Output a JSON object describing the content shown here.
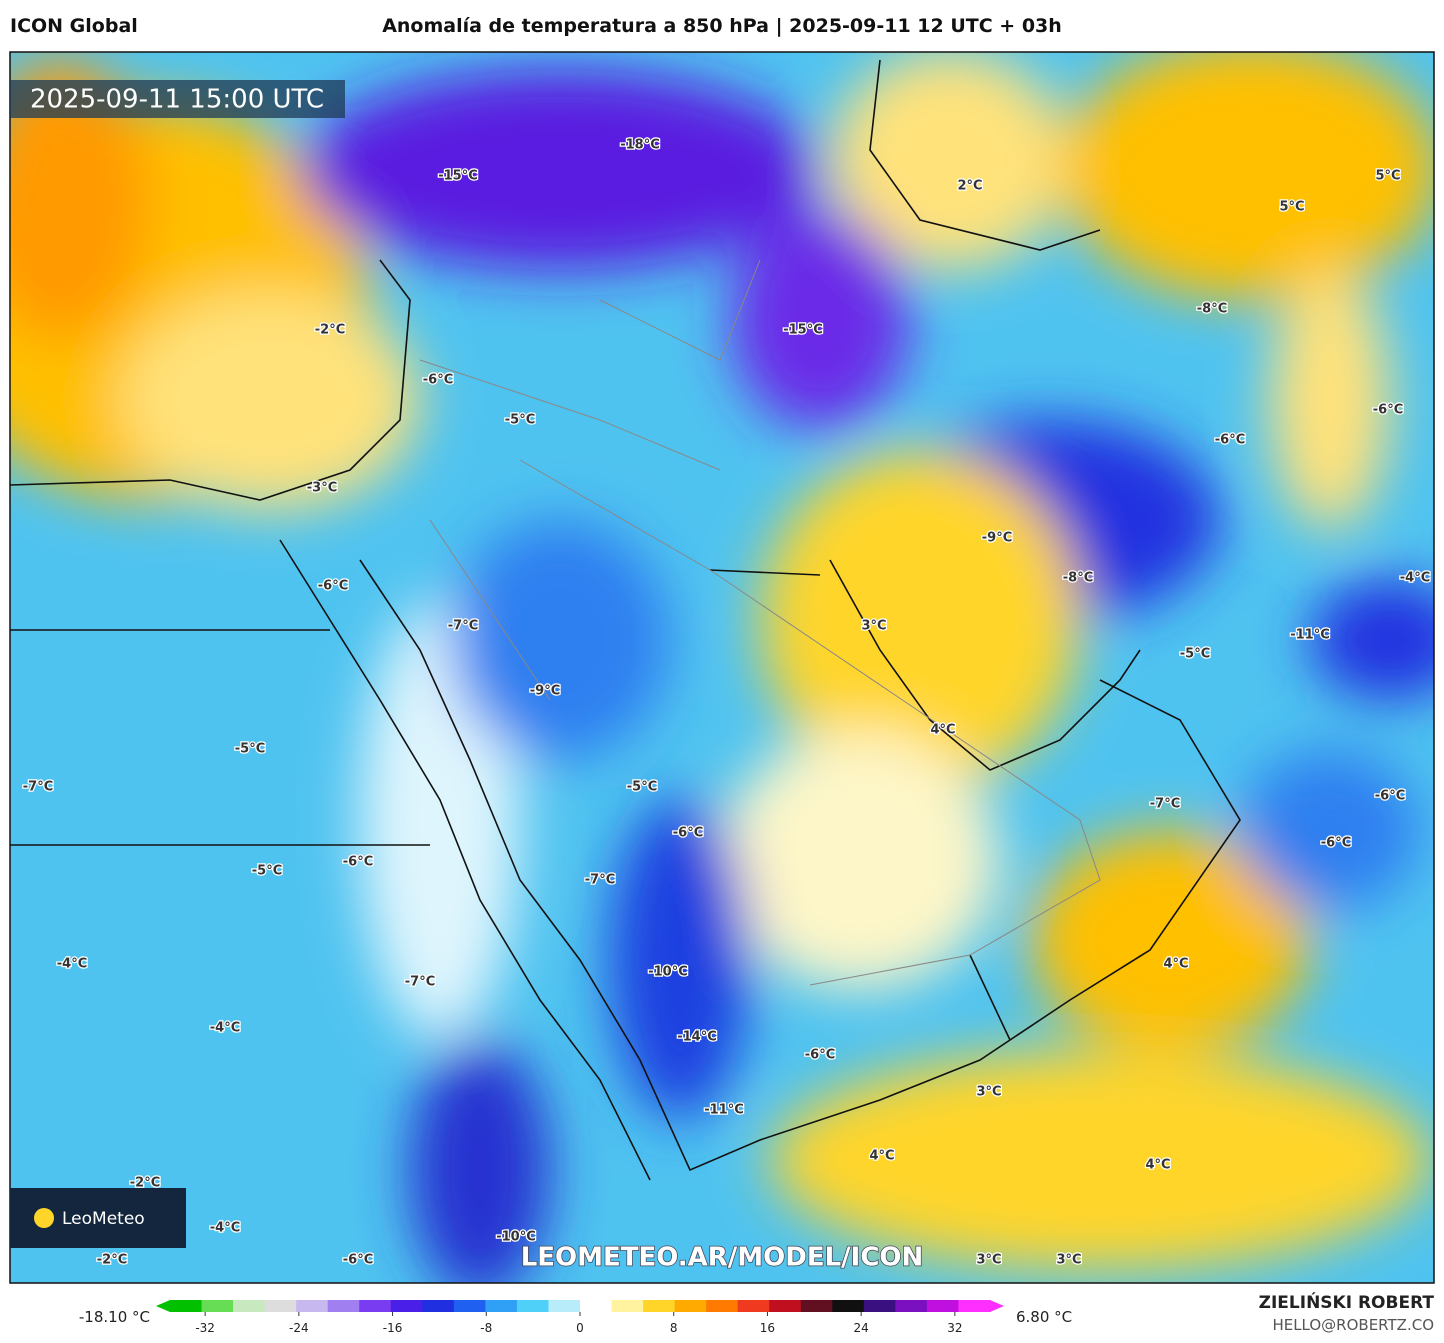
{
  "header": {
    "model": "ICON Global",
    "title": "Anomalía de temperatura a 850 hPa | 2025-09-11 12 UTC + 03h"
  },
  "map": {
    "timestamp": "2025-09-11 15:00 UTC",
    "watermark": "LEOMETEO.AR/MODEL/ICON",
    "logo": "LeoMeteo",
    "labels": [
      "-18°C",
      "-15°C",
      "2°C",
      "5°C",
      "5°C",
      "-2°C",
      "-15°C",
      "-8°C",
      "-6°C",
      "-5°C",
      "-6°C",
      "-6°C",
      "-3°C",
      "-9°C",
      "-8°C",
      "-4°C",
      "-6°C",
      "-7°C",
      "3°C",
      "-11°C",
      "-5°C",
      "-9°C",
      "4°C",
      "-5°C",
      "-7°C",
      "-5°C",
      "-7°C",
      "-6°C",
      "-6°C",
      "-6°C",
      "-6°C",
      "-5°C",
      "-7°C",
      "-4°C",
      "4°C",
      "-10°C",
      "-7°C",
      "-4°C",
      "-14°C",
      "-6°C",
      "3°C",
      "-11°C",
      "4°C",
      "4°C",
      "-2°C",
      "-4°C",
      "-10°C",
      "-2°C",
      "-6°C",
      "3°C",
      "3°C"
    ]
  },
  "colorbar": {
    "min_label": "-18.10 °C",
    "max_label": "6.80 °C",
    "lim": [
      -35,
      35
    ],
    "ticks": [
      -32,
      -24,
      -16,
      -8,
      0,
      8,
      16,
      24,
      32
    ]
  },
  "footer": {
    "author": "ZIELIŃSKI ROBERT",
    "email": "HELLO@ROBERTZ.CO"
  }
}
